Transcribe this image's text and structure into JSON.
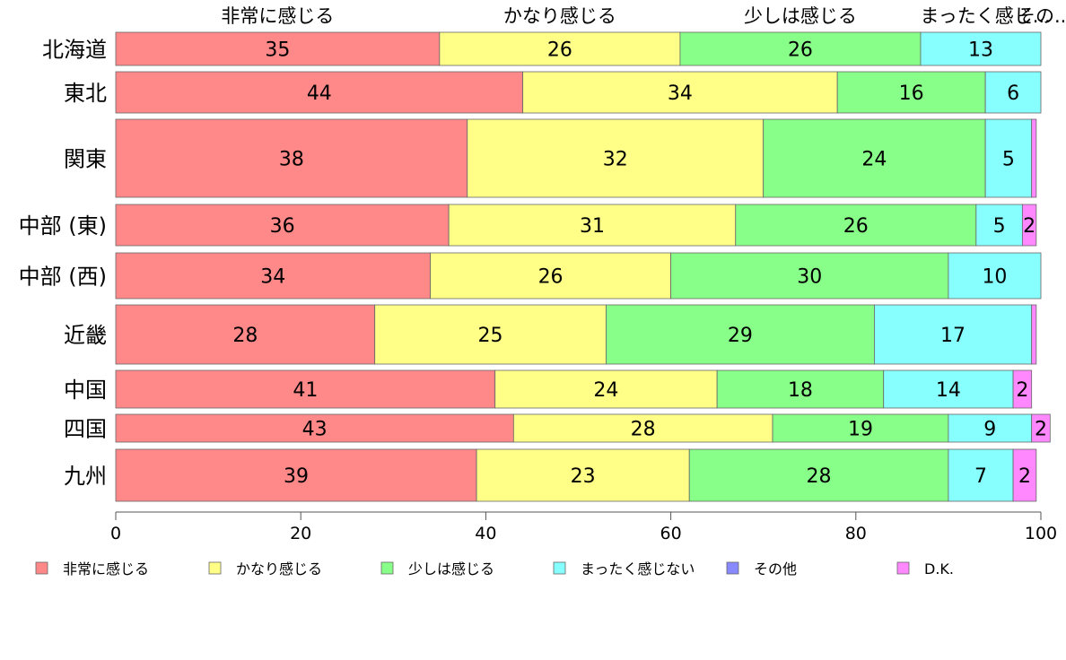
{
  "chart_data": {
    "type": "bar",
    "orientation": "horizontal",
    "stacked": true,
    "categories": [
      "北海道",
      "東北",
      "関東",
      "中部 (東)",
      "中部 (西)",
      "近畿",
      "中国",
      "四国",
      "九州"
    ],
    "series": [
      {
        "name": "非常に感じる",
        "color": "#FF8888",
        "values": [
          35,
          44,
          38,
          36,
          34,
          28,
          41,
          43,
          39
        ],
        "labels": [
          "35",
          "44",
          "38",
          "36",
          "34",
          "28",
          "41",
          "43",
          "39"
        ]
      },
      {
        "name": "かなり感じる",
        "color": "#FFFF88",
        "values": [
          26,
          34,
          32,
          31,
          26,
          25,
          24,
          28,
          23
        ],
        "labels": [
          "26",
          "34",
          "32",
          "31",
          "26",
          "25",
          "24",
          "28",
          "23"
        ]
      },
      {
        "name": "少しは感じる",
        "color": "#88FF88",
        "values": [
          26,
          16,
          24,
          26,
          30,
          29,
          18,
          19,
          28
        ],
        "labels": [
          "26",
          "16",
          "24",
          "26",
          "30",
          "29",
          "18",
          "19",
          "28"
        ]
      },
      {
        "name": "まったく感じない",
        "color": "#88FFFF",
        "values": [
          13,
          6,
          5,
          5,
          10,
          17,
          14,
          9,
          7
        ],
        "labels": [
          "13",
          "6",
          "5",
          "5",
          "10",
          "17",
          "14",
          "9",
          "7"
        ]
      },
      {
        "name": "その他",
        "color": "#8888FF",
        "values": [
          0,
          0,
          0,
          0,
          0,
          0,
          0,
          0,
          0
        ],
        "labels": [
          "",
          "",
          "",
          "",
          "",
          "",
          "",
          "",
          ""
        ]
      },
      {
        "name": "D.K.",
        "color": "#FF88FF",
        "values": [
          0,
          0,
          0.5,
          1.5,
          0,
          0.5,
          2,
          2,
          2.5
        ],
        "labels": [
          "",
          "",
          "",
          "2",
          "",
          "",
          "2",
          "2",
          "2"
        ]
      }
    ],
    "top_labels": [
      "非常に感じる",
      "かなり感じる",
      "少しは感じる",
      "まったく感じ...",
      "その..."
    ],
    "xlim": [
      0,
      100
    ],
    "x_ticks": [
      0,
      20,
      40,
      60,
      80,
      100
    ],
    "title": "",
    "xlabel": "",
    "ylabel": "",
    "grid": false,
    "legend_position": "bottom"
  }
}
